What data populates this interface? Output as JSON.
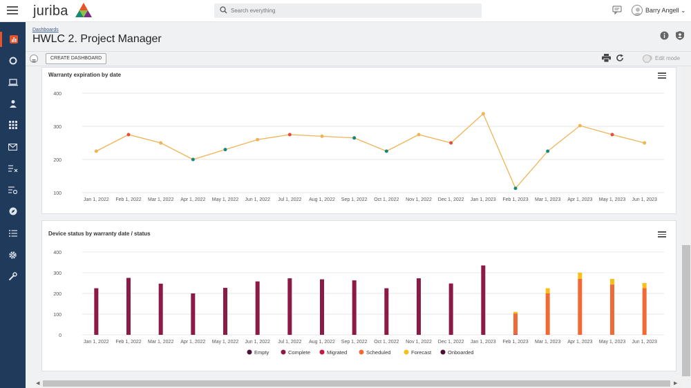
{
  "app": {
    "logo_text": "juriba",
    "search_placeholder": "Search everything",
    "user_name": "Barry Angell"
  },
  "header": {
    "breadcrumb": "Dashboards",
    "title": "HWLC 2. Project Manager"
  },
  "toolbar": {
    "create_label": "CREATE DASHBOARD",
    "edit_mode_label": "Edit mode"
  },
  "nav": {
    "items": [
      {
        "icon": "chart-icon",
        "active": true
      },
      {
        "icon": "donut-icon"
      },
      {
        "icon": "laptop-icon"
      },
      {
        "icon": "user-icon"
      },
      {
        "icon": "grid-icon"
      },
      {
        "icon": "mail-icon"
      },
      {
        "icon": "list-check-icon"
      },
      {
        "icon": "checklist-icon"
      },
      {
        "icon": "compass-icon"
      },
      {
        "icon": "list-icon"
      },
      {
        "icon": "gear-icon"
      },
      {
        "icon": "wrench-icon"
      }
    ]
  },
  "colors": {
    "accent": "#e8532b",
    "nav_bg": "#1f3a5a",
    "line": "#f0b454",
    "empty": "#4a1338",
    "complete": "#8b1a47",
    "migrated": "#c8173f",
    "scheduled": "#f06a35",
    "forecast": "#f7bf1a",
    "onboarded": "#4d1030",
    "dot_orange": "#f0b454",
    "dot_red": "#e84c3d",
    "dot_teal": "#14897a"
  },
  "chart_data": [
    {
      "type": "line",
      "title": "Warranty expiration by date",
      "categories": [
        "Jan 1, 2022",
        "Feb 1, 2022",
        "Mar 1, 2022",
        "Apr 1, 2022",
        "May 1, 2022",
        "Jun 1, 2022",
        "Jul 1, 2022",
        "Aug 1, 2022",
        "Sep 1, 2022",
        "Oct 1, 2022",
        "Nov 1, 2022",
        "Dec 1, 2022",
        "Jan 1, 2023",
        "Feb 1, 2023",
        "Mar 1, 2023",
        "Apr 1, 2023",
        "May 1, 2023",
        "Jun 1, 2023"
      ],
      "values": [
        225,
        275,
        250,
        200,
        230,
        260,
        275,
        270,
        265,
        225,
        275,
        250,
        338,
        113,
        225,
        302,
        275,
        250
      ],
      "point_colors": [
        "orange",
        "red",
        "orange",
        "teal",
        "teal",
        "orange",
        "red",
        "orange",
        "teal",
        "teal",
        "orange",
        "red",
        "orange",
        "teal",
        "teal",
        "orange",
        "red",
        "orange"
      ],
      "yticks": [
        100,
        200,
        300,
        400
      ],
      "ylim": [
        100,
        400
      ],
      "grid": true
    },
    {
      "type": "bar",
      "stacked": true,
      "title": "Device status by warranty date / status",
      "categories": [
        "Jan 1, 2022",
        "Feb 1, 2022",
        "Mar 1, 2022",
        "Apr 1, 2022",
        "May 1, 2022",
        "Jun 1, 2022",
        "Jul 1, 2022",
        "Aug 1, 2022",
        "Sep 1, 2022",
        "Oct 1, 2022",
        "Nov 1, 2022",
        "Dec 1, 2022",
        "Jan 1, 2023",
        "Feb 1, 2023",
        "Mar 1, 2023",
        "Apr 1, 2023",
        "May 1, 2023",
        "Jun 1, 2023"
      ],
      "series": [
        {
          "name": "Empty",
          "values": [
            0,
            0,
            0,
            0,
            0,
            0,
            0,
            0,
            0,
            0,
            0,
            0,
            0,
            0,
            0,
            0,
            0,
            0
          ]
        },
        {
          "name": "Complete",
          "values": [
            225,
            275,
            247,
            200,
            227,
            258,
            273,
            268,
            263,
            225,
            273,
            248,
            335,
            0,
            0,
            0,
            0,
            0
          ]
        },
        {
          "name": "Migrated",
          "values": [
            0,
            0,
            0,
            0,
            0,
            0,
            0,
            0,
            0,
            0,
            0,
            0,
            0,
            3,
            0,
            0,
            0,
            0
          ]
        },
        {
          "name": "Scheduled",
          "values": [
            0,
            0,
            0,
            0,
            0,
            0,
            0,
            0,
            0,
            0,
            0,
            0,
            0,
            100,
            200,
            270,
            243,
            225
          ]
        },
        {
          "name": "Forecast",
          "values": [
            0,
            0,
            0,
            0,
            0,
            0,
            0,
            0,
            0,
            0,
            0,
            0,
            0,
            8,
            25,
            30,
            27,
            25
          ]
        },
        {
          "name": "Onboarded",
          "values": [
            0,
            0,
            0,
            0,
            0,
            0,
            0,
            0,
            0,
            0,
            0,
            0,
            0,
            0,
            0,
            0,
            0,
            0
          ]
        }
      ],
      "yticks": [
        0,
        100,
        200,
        300,
        400
      ],
      "ylim": [
        0,
        400
      ],
      "legend": "bottom",
      "grid": true
    }
  ]
}
